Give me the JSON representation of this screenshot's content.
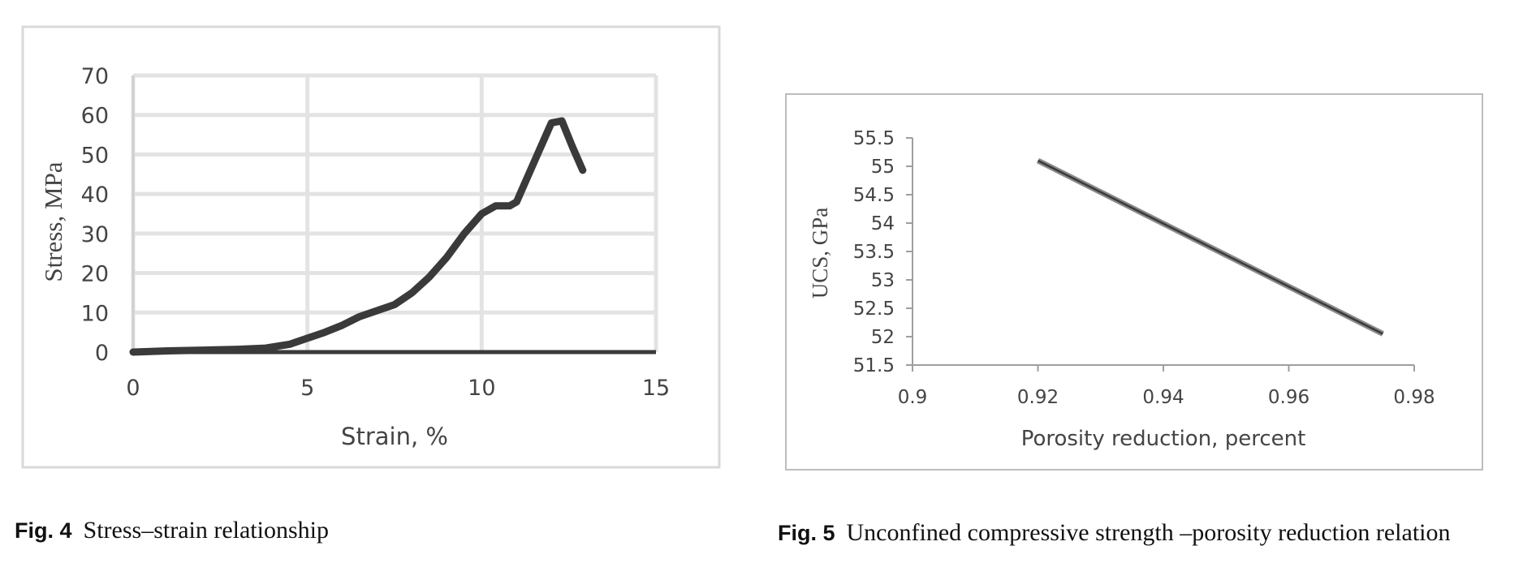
{
  "figures": [
    {
      "caption_label": "Fig. 4",
      "caption_text": "Stress–strain relationship",
      "chart_data": {
        "type": "line",
        "title": "",
        "xlabel": "Strain, %",
        "ylabel": "Stress, MPa",
        "xlim": [
          0,
          15
        ],
        "ylim": [
          0,
          70
        ],
        "xticks": [
          "0",
          "5",
          "10",
          "15"
        ],
        "yticks": [
          "0",
          "10",
          "20",
          "30",
          "40",
          "50",
          "60",
          "70"
        ],
        "grid": true,
        "line_color": "#3a3a3a",
        "series": [
          {
            "x": [
              0,
              1,
              2,
              3,
              3.8,
              4.5,
              5,
              5.5,
              6,
              6.5,
              7,
              7.5,
              8,
              8.5,
              9,
              9.5,
              10,
              10.4,
              10.8,
              11,
              11.5,
              12,
              12.3,
              12.6,
              12.9
            ],
            "y": [
              0,
              0.3,
              0.5,
              0.7,
              1,
              2,
              3.5,
              5,
              6.8,
              9,
              10.5,
              12,
              15,
              19,
              24,
              30,
              35,
              37,
              37,
              38,
              48,
              58,
              58.5,
              52,
              46
            ]
          }
        ]
      }
    },
    {
      "caption_label": "Fig. 5",
      "caption_text": "Unconfined compressive strength –porosity reduction relation",
      "chart_data": {
        "type": "line",
        "title": "",
        "xlabel": "Porosity reduction, percent",
        "ylabel": "UCS, GPa",
        "xlim": [
          0.9,
          0.98
        ],
        "ylim": [
          51.5,
          55.5
        ],
        "xticks": [
          "0.9",
          "0.92",
          "0.94",
          "0.96",
          "0.98"
        ],
        "yticks": [
          "51.5",
          "52",
          "52.5",
          "53",
          "53.5",
          "54",
          "54.5",
          "55",
          "55.5"
        ],
        "grid": false,
        "line_color": "#555555",
        "series": [
          {
            "x": [
              0.92,
              0.975
            ],
            "y": [
              55.1,
              52.05
            ]
          }
        ]
      }
    }
  ]
}
